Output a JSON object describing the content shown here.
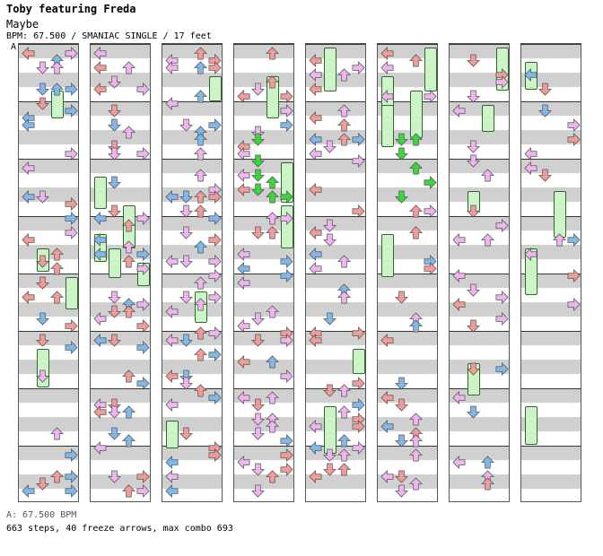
{
  "song": {
    "artist": "Toby featuring Freda",
    "title": "Maybe",
    "info": "BPM: 67.500 / SMANIAC SINGLE / 17 feet"
  },
  "chart_annotations": {
    "bpm_marker_label": "A"
  },
  "footer": {
    "bpm_line": "A: 67.500 BPM",
    "stats_line": "663 steps, 40 freeze arrows, max combo 693"
  },
  "chart_data": {
    "type": "step-chart",
    "bpm": 67.5,
    "mode": "SMANIAC SINGLE",
    "difficulty_feet": 17,
    "steps": 663,
    "freeze_arrows": 40,
    "max_combo": 693,
    "columns": 8,
    "lanes": [
      "left",
      "down",
      "up",
      "right"
    ],
    "colors": {
      "quarter": "#f49a9a",
      "eighth": "#7fb8ee",
      "sixteenth": "#f2b4f0",
      "shock": "#38d838",
      "mine": "#e6e610",
      "freeze_fill": "#cdf4c8",
      "freeze_border": "#2a6a2a",
      "stripe": "#d0d0d0"
    }
  }
}
